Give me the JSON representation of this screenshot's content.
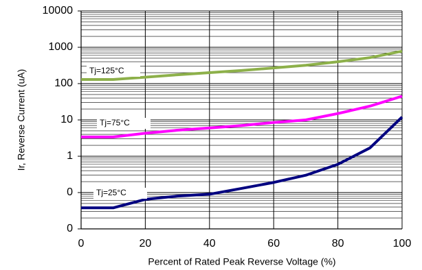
{
  "chart_data": {
    "type": "line",
    "x_label": "Percent of Rated Peak Reverse Voltage (%)",
    "y_label": "Ir, Reverse Current (uA)",
    "log_y": true,
    "grid": true,
    "minor_grid": true,
    "x": [
      0,
      10,
      20,
      30,
      40,
      50,
      60,
      70,
      80,
      90,
      100
    ],
    "series": [
      {
        "name": "Tj=125°C",
        "color": "#8db04a",
        "values": [
          130,
          130,
          150,
          175,
          200,
          230,
          270,
          320,
          400,
          520,
          780
        ]
      },
      {
        "name": "Tj=75°C",
        "color": "#ff00ff",
        "values": [
          3.4,
          3.4,
          4.3,
          5.2,
          6,
          7,
          8.5,
          10,
          15,
          24,
          45
        ]
      },
      {
        "name": "Tj=25°C",
        "color": "#000080",
        "values": [
          0.038,
          0.038,
          0.065,
          0.08,
          0.09,
          0.13,
          0.19,
          0.3,
          0.6,
          1.7,
          12
        ]
      }
    ],
    "xlim": [
      0,
      100
    ],
    "xticks": [
      0,
      20,
      40,
      60,
      80,
      100
    ],
    "ylim": [
      0.01,
      10000
    ],
    "yticks": [
      {
        "value": 0.01,
        "label": "0"
      },
      {
        "value": 0.1,
        "label": "0"
      },
      1,
      10,
      100,
      1000,
      10000
    ]
  }
}
